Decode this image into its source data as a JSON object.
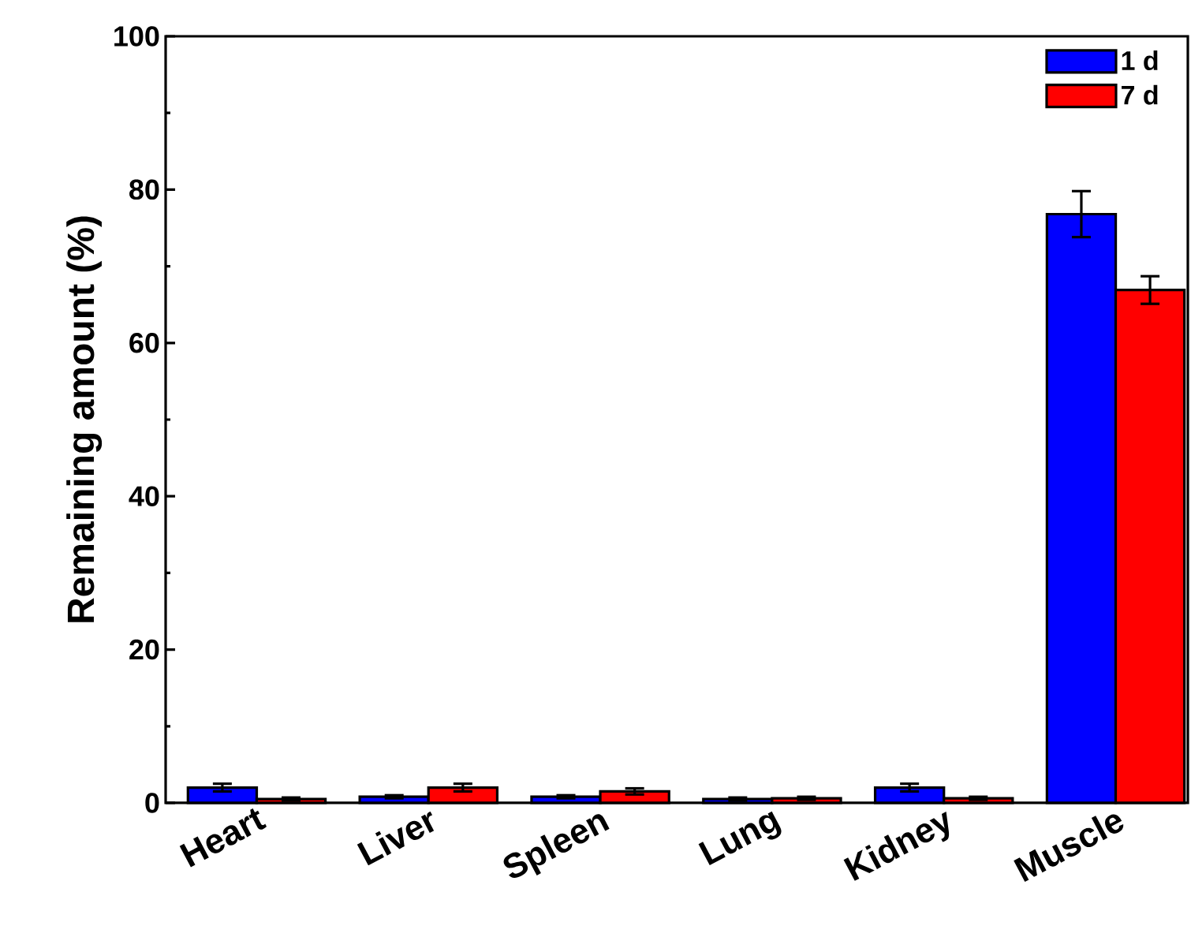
{
  "chart_data": {
    "type": "bar",
    "ylabel": "Remaining amount (%)",
    "categories": [
      "Heart",
      "Liver",
      "Spleen",
      "Lung",
      "Kidney",
      "Muscle"
    ],
    "series": [
      {
        "name": "1 d",
        "color": "#0000ff",
        "values": [
          2.0,
          0.8,
          0.8,
          0.5,
          2.0,
          76.8
        ],
        "errors": [
          0.5,
          0.2,
          0.2,
          0.2,
          0.5,
          3.0
        ]
      },
      {
        "name": "7 d",
        "color": "#ff0000",
        "values": [
          0.5,
          2.0,
          1.5,
          0.6,
          0.6,
          66.9
        ],
        "errors": [
          0.2,
          0.5,
          0.4,
          0.2,
          0.2,
          1.8
        ]
      }
    ],
    "ylim": [
      0,
      100
    ],
    "yticks": [
      0,
      20,
      40,
      60,
      80,
      100
    ],
    "legend": "top right"
  }
}
